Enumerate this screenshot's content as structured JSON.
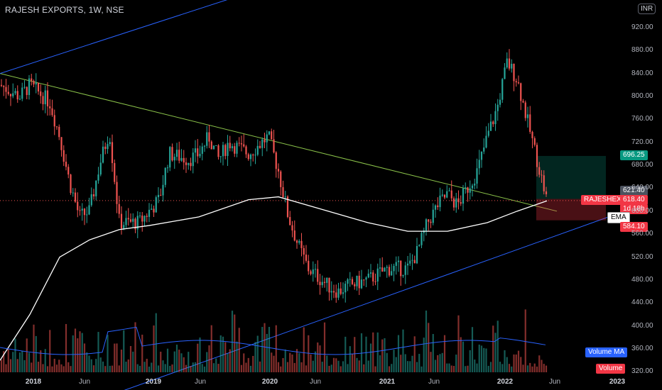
{
  "header": {
    "title": "RAJESH EXPORTS, 1W, NSE"
  },
  "currency_badge": "INR",
  "price_tags": {
    "target": "696.25",
    "last": "621.40",
    "symbol": "RAJESHEXPO",
    "current": "618.40",
    "countdown": "1d 18h",
    "ema_label": "EMA",
    "stop": "584.10",
    "volume_ma_label": "Volume MA",
    "volume_label": "Volume"
  },
  "colors": {
    "up": "#26a69a",
    "down": "#ef5350",
    "ema": "#ffffff",
    "trend_green": "#8bc34a",
    "trend_blue": "#2962ff",
    "vol_ma": "#2962ff"
  },
  "chart_data": {
    "type": "candlestick",
    "title": "RAJESH EXPORTS, 1W, NSE",
    "y_ticks": [
      "920.00",
      "880.00",
      "840.00",
      "800.00",
      "760.00",
      "720.00",
      "680.00",
      "640.00",
      "600.00",
      "560.00",
      "520.00",
      "480.00",
      "440.00",
      "400.00",
      "360.00",
      "320.00"
    ],
    "ylim": [
      302,
      968
    ],
    "x_ticks": [
      {
        "label": "2018",
        "bold": true
      },
      {
        "label": "Jun",
        "bold": false
      },
      {
        "label": "2019",
        "bold": true
      },
      {
        "label": "Jun",
        "bold": false
      },
      {
        "label": "2020",
        "bold": true
      },
      {
        "label": "Jun",
        "bold": false
      },
      {
        "label": "2021",
        "bold": true
      },
      {
        "label": "Jun",
        "bold": false
      },
      {
        "label": "2022",
        "bold": true
      },
      {
        "label": "Jun",
        "bold": false
      },
      {
        "label": "2023",
        "bold": true
      }
    ],
    "price_path": [
      {
        "date": "2017-10",
        "close": 820
      },
      {
        "date": "2017-12",
        "close": 800
      },
      {
        "date": "2018-01",
        "close": 820
      },
      {
        "date": "2018-03",
        "close": 790
      },
      {
        "date": "2018-04",
        "close": 730
      },
      {
        "date": "2018-05",
        "close": 650
      },
      {
        "date": "2018-06",
        "close": 590
      },
      {
        "date": "2018-07",
        "close": 600
      },
      {
        "date": "2018-08",
        "close": 680
      },
      {
        "date": "2018-09",
        "close": 740
      },
      {
        "date": "2018-10",
        "close": 580
      },
      {
        "date": "2018-12",
        "close": 580
      },
      {
        "date": "2019-01",
        "close": 600
      },
      {
        "date": "2019-02",
        "close": 620
      },
      {
        "date": "2019-03",
        "close": 700
      },
      {
        "date": "2019-05",
        "close": 690
      },
      {
        "date": "2019-06",
        "close": 700
      },
      {
        "date": "2019-07",
        "close": 730
      },
      {
        "date": "2019-08",
        "close": 690
      },
      {
        "date": "2019-09",
        "close": 720
      },
      {
        "date": "2019-11",
        "close": 700
      },
      {
        "date": "2020-01",
        "close": 730
      },
      {
        "date": "2020-02",
        "close": 670
      },
      {
        "date": "2020-03",
        "close": 590
      },
      {
        "date": "2020-04",
        "close": 540
      },
      {
        "date": "2020-05",
        "close": 500
      },
      {
        "date": "2020-07",
        "close": 470
      },
      {
        "date": "2020-08",
        "close": 460
      },
      {
        "date": "2020-09",
        "close": 470
      },
      {
        "date": "2020-11",
        "close": 480
      },
      {
        "date": "2021-01",
        "close": 500
      },
      {
        "date": "2021-03",
        "close": 500
      },
      {
        "date": "2021-04",
        "close": 530
      },
      {
        "date": "2021-05",
        "close": 580
      },
      {
        "date": "2021-06",
        "close": 610
      },
      {
        "date": "2021-07",
        "close": 630
      },
      {
        "date": "2021-08",
        "close": 610
      },
      {
        "date": "2021-09",
        "close": 640
      },
      {
        "date": "2021-10",
        "close": 670
      },
      {
        "date": "2021-11",
        "close": 730
      },
      {
        "date": "2021-12",
        "close": 780
      },
      {
        "date": "2022-01",
        "close": 860
      },
      {
        "date": "2022-02",
        "close": 830
      },
      {
        "date": "2022-03",
        "close": 760
      },
      {
        "date": "2022-04",
        "close": 690
      },
      {
        "date": "2022-05",
        "close": 618.4
      }
    ],
    "ema_path": [
      {
        "date": "2017-10",
        "value": 340
      },
      {
        "date": "2018-01",
        "value": 420
      },
      {
        "date": "2018-04",
        "value": 520
      },
      {
        "date": "2018-07",
        "value": 550
      },
      {
        "date": "2018-10",
        "value": 568
      },
      {
        "date": "2019-01",
        "value": 575
      },
      {
        "date": "2019-06",
        "value": 590
      },
      {
        "date": "2019-11",
        "value": 620
      },
      {
        "date": "2020-02",
        "value": 625
      },
      {
        "date": "2020-06",
        "value": 605
      },
      {
        "date": "2020-11",
        "value": 580
      },
      {
        "date": "2021-03",
        "value": 565
      },
      {
        "date": "2021-07",
        "value": 565
      },
      {
        "date": "2021-11",
        "value": 580
      },
      {
        "date": "2022-02",
        "value": 600
      },
      {
        "date": "2022-05",
        "value": 618
      }
    ],
    "trend_lines": [
      {
        "name": "",
        "color": "green",
        "from": {
          "date": "2017-10",
          "value": 840
        },
        "to": {
          "date": "2022-06",
          "value": 600
        }
      },
      {
        "name": "",
        "color": "blue",
        "from": {
          "date": "2017-10",
          "value": 840
        },
        "to": {
          "date": "2019-10",
          "value": 975
        }
      },
      {
        "name": "",
        "color": "blue",
        "from": {
          "date": "2018-06",
          "value": 260
        },
        "to": {
          "date": "2022-12",
          "value": 595
        }
      }
    ],
    "position_box": {
      "entry": 621.4,
      "target": 696.25,
      "stop": 584.1
    },
    "volume": {
      "ma_label": "Volume MA",
      "label": "Volume"
    }
  }
}
